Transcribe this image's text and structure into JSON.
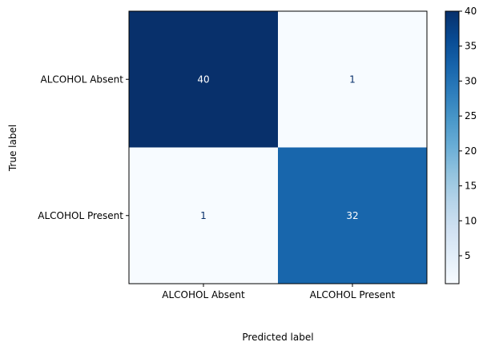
{
  "chart_data": {
    "type": "heatmap",
    "title": "",
    "xlabel": "Predicted label",
    "ylabel": "True label",
    "row_labels": [
      "ALCOHOL Absent",
      "ALCOHOL Present"
    ],
    "col_labels": [
      "ALCOHOL Absent",
      "ALCOHOL Present"
    ],
    "values": [
      [
        40,
        1
      ],
      [
        1,
        32
      ]
    ],
    "colormap": "Blues",
    "colorbar": {
      "range": [
        1,
        40
      ],
      "ticks": [
        "5",
        "10",
        "15",
        "20",
        "25",
        "30",
        "35",
        "40"
      ]
    },
    "colors": {
      "low": "#f7fbff",
      "high": "#08306b",
      "text_on_dark": "#ffffff",
      "text_on_light": "#08306b"
    }
  }
}
